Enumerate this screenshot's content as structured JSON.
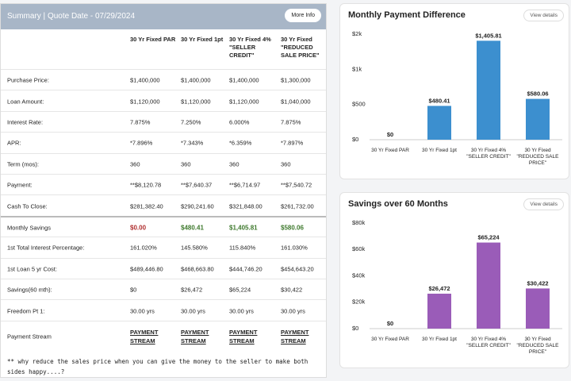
{
  "table": {
    "title": "Summary | Quote Date - 07/29/2024",
    "button": "More Info",
    "columns": [
      "30 Yr Fixed PAR",
      "30 Yr Fixed 1pt",
      "30 Yr Fixed 4% \"SELLER CREDIT\"",
      "30 Yr Fixed \"REDUCED SALE PRICE\""
    ],
    "rows": [
      {
        "label": "Purchase Price:",
        "cells": [
          "$1,400,000",
          "$1,400,000",
          "$1,400,000",
          "$1,300,000"
        ]
      },
      {
        "label": "Loan Amount:",
        "cells": [
          "$1,120,000",
          "$1,120,000",
          "$1,120,000",
          "$1,040,000"
        ]
      },
      {
        "label": "Interest Rate:",
        "cells": [
          "7.875%",
          "7.250%",
          "6.000%",
          "7.875%"
        ]
      },
      {
        "label": "APR:",
        "cells": [
          "*7.896%",
          "*7.343%",
          "*6.359%",
          "*7.897%"
        ]
      },
      {
        "label": "Term (mos):",
        "cells": [
          "360",
          "360",
          "360",
          "360"
        ]
      },
      {
        "label": "Payment:",
        "cells": [
          "**$8,120.78",
          "**$7,640.37",
          "**$6,714.97",
          "**$7,540.72"
        ]
      },
      {
        "label": "Cash To Close:",
        "cells": [
          "$281,382.40",
          "$290,241.60",
          "$321,848.00",
          "$261,732.00"
        ]
      },
      {
        "label": "Monthly Savings",
        "cells": [
          "$0.00",
          "$480.41",
          "$1,405.81",
          "$580.06"
        ]
      },
      {
        "label": "1st Total Interest Percentage:",
        "cells": [
          "161.020%",
          "145.580%",
          "115.840%",
          "161.030%"
        ]
      },
      {
        "label": "1st Loan 5 yr Cost:",
        "cells": [
          "$489,446.80",
          "$468,663.80",
          "$444,746.20",
          "$454,643.20"
        ]
      },
      {
        "label": "Savings(60 mth):",
        "cells": [
          "$0",
          "$26,472",
          "$65,224",
          "$30,422"
        ]
      },
      {
        "label": "Freedom Pt 1:",
        "cells": [
          "30.00 yrs",
          "30.00 yrs",
          "30.00 yrs",
          "30.00 yrs"
        ]
      },
      {
        "label": "Payment Stream",
        "cells": [
          "PAYMENT STREAM",
          "PAYMENT STREAM",
          "PAYMENT STREAM",
          "PAYMENT STREAM"
        ]
      }
    ],
    "note": "** why reduce the sales price when you can give the money to the seller to make both sides happy....?"
  },
  "chart_data": [
    {
      "type": "bar",
      "title": "Monthly Payment Difference",
      "button": "View details",
      "categories": [
        "30 Yr Fixed PAR",
        "30 Yr Fixed 1pt",
        "30 Yr Fixed 4% \"SELLER CREDIT\"",
        "30 Yr Fixed \"REDUCED SALE PRICE\""
      ],
      "values": [
        0,
        480.41,
        1405.81,
        580.06
      ],
      "value_labels": [
        "$0",
        "$480.41",
        "$1,405.81",
        "$580.06"
      ],
      "color": "#3c8fcf",
      "ylim": [
        0,
        1500
      ],
      "yticks": [
        {
          "value": 0,
          "label": "$0"
        },
        {
          "value": 500,
          "label": "$500"
        },
        {
          "value": 1000,
          "label": "$1k"
        },
        {
          "value": 1500,
          "label": "$2k"
        }
      ],
      "grid": false
    },
    {
      "type": "bar",
      "title": "Savings over 60 Months",
      "button": "View details",
      "categories": [
        "30 Yr Fixed PAR",
        "30 Yr Fixed 1pt",
        "30 Yr Fixed 4% \"SELLER CREDIT\"",
        "30 Yr Fixed \"REDUCED SALE PRICE\""
      ],
      "values": [
        0,
        26472,
        65224,
        30422
      ],
      "value_labels": [
        "$0",
        "$26,472",
        "$65,224",
        "$30,422"
      ],
      "color": "#9a5cb8",
      "ylim": [
        0,
        80000
      ],
      "yticks": [
        {
          "value": 0,
          "label": "$0"
        },
        {
          "value": 20000,
          "label": "$20k"
        },
        {
          "value": 40000,
          "label": "$40k"
        },
        {
          "value": 60000,
          "label": "$60k"
        },
        {
          "value": 80000,
          "label": "$80k"
        }
      ],
      "grid": false
    }
  ]
}
